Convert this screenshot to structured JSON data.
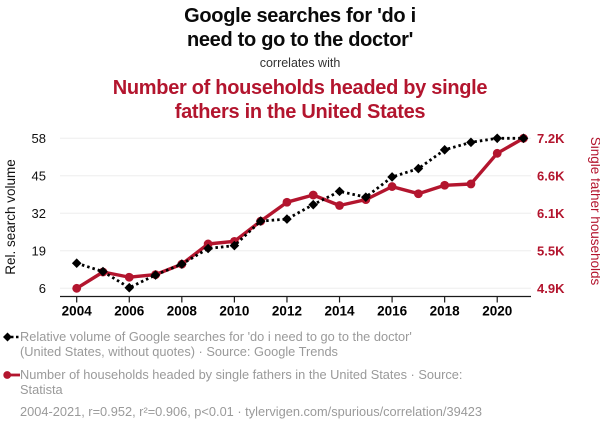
{
  "header": {
    "title_lines": [
      "Google searches for 'do i",
      "need to go to the doctor'"
    ],
    "correlates_text": "correlates with",
    "subtitle_lines": [
      "Number of households headed by single",
      "fathers in the United States"
    ]
  },
  "colors": {
    "accent_red": "#b3152e",
    "series_black": "#000000",
    "legend_gray": "#9a9a9a",
    "gridline": "#ededed",
    "axis": "#1a1a1a"
  },
  "chart_data": {
    "type": "line",
    "x": [
      2004,
      2005,
      2006,
      2007,
      2008,
      2009,
      2010,
      2011,
      2012,
      2013,
      2014,
      2015,
      2016,
      2017,
      2018,
      2019,
      2020,
      2021
    ],
    "x_ticks": [
      2004,
      2006,
      2008,
      2010,
      2012,
      2014,
      2016,
      2018,
      2020
    ],
    "left_axis": {
      "label": "Rel. search volume",
      "ticks": [
        "6",
        "19",
        "32",
        "45",
        "58"
      ],
      "min": 6,
      "max": 58
    },
    "right_axis": {
      "label": "Single father households",
      "ticks": [
        "4.9K",
        "5.5K",
        "6.1K",
        "6.6K",
        "7.2K"
      ],
      "min": 4.9,
      "max": 7.2
    },
    "series": [
      {
        "name": "Relative volume of Google searches for 'do i need to go to the doctor'",
        "axis": "left",
        "marker": "diamond",
        "line": "dashed",
        "color": "#000000",
        "values": [
          14.7,
          11.8,
          6.2,
          10.6,
          14.4,
          19.8,
          20.8,
          29.3,
          30,
          35,
          39.6,
          37.6,
          44.6,
          47.5,
          54,
          56.6,
          58,
          58
        ]
      },
      {
        "name": "Number of households headed by single fathers in the United States",
        "axis": "right",
        "marker": "circle",
        "line": "solid",
        "color": "#b3152e",
        "values": [
          4.9,
          5.15,
          5.07,
          5.11,
          5.27,
          5.58,
          5.62,
          5.93,
          6.22,
          6.33,
          6.17,
          6.26,
          6.46,
          6.35,
          6.48,
          6.5,
          6.97,
          7.2
        ]
      }
    ]
  },
  "legend": {
    "items": [
      {
        "lines": [
          "Relative volume of Google searches for 'do i need to go to the doctor'",
          "(United States, without quotes) · Source: Google Trends"
        ]
      },
      {
        "lines": [
          "Number of households headed by single fathers in the United States · Source:",
          "Statista"
        ]
      }
    ],
    "stats_line": "2004-2021, r=0.952, r²=0.906, p<0.01 · tylervigen.com/spurious/correlation/39423"
  }
}
